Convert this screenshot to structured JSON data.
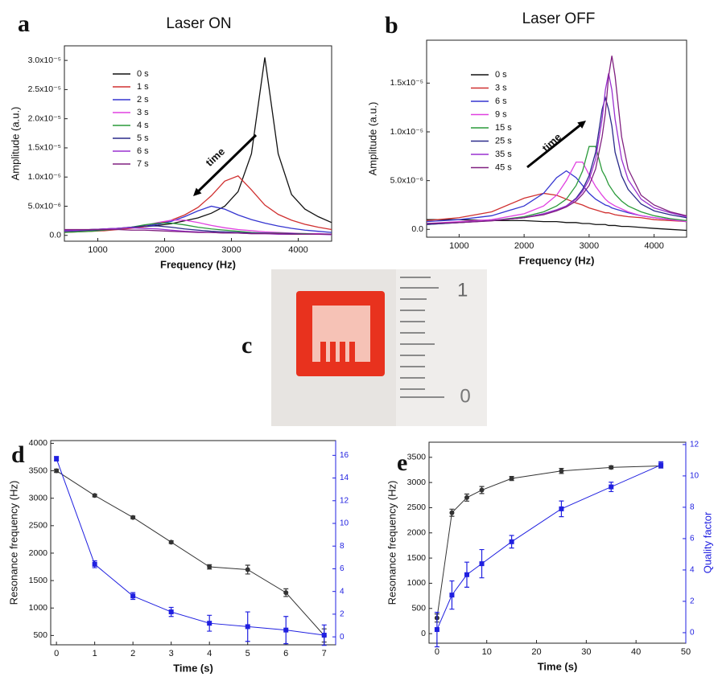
{
  "chart_data": [
    {
      "type": "line",
      "panel_label": "a",
      "title": "Laser ON",
      "x_label": "Frequency (Hz)",
      "y_label": "Amplitude (a.u.)",
      "x": [
        500,
        700,
        900,
        1100,
        1300,
        1500,
        1700,
        1900,
        2100,
        2300,
        2500,
        2700,
        2900,
        3100,
        3300,
        3500,
        3700,
        3900,
        4100,
        4300,
        4500
      ],
      "xlim": [
        500,
        4500
      ],
      "xticks": [
        1000,
        2000,
        3000,
        4000
      ],
      "ylim": [
        -1e-06,
        3.25e-05
      ],
      "yticks": [
        {
          "value": 0,
          "label": "0.0"
        },
        {
          "value": 5e-06,
          "label": "5.0x10⁻⁶"
        },
        {
          "value": 1e-05,
          "label": "1.0x10⁻⁵"
        },
        {
          "value": 1.5e-05,
          "label": "1.5x10⁻⁵"
        },
        {
          "value": 2e-05,
          "label": "2.0x10⁻⁵"
        },
        {
          "value": 2.5e-05,
          "label": "2.5x10⁻⁵"
        },
        {
          "value": 3e-05,
          "label": "3.0x10⁻⁵"
        }
      ],
      "legend": "upper left",
      "annotation": "time",
      "series": [
        {
          "name": "0 s",
          "color": "#111111",
          "values": [
            8e-07,
            9e-07,
            1e-06,
            1.1e-06,
            1.2e-06,
            1.3e-06,
            1.5e-06,
            1.7e-06,
            2e-06,
            2.5e-06,
            3e-06,
            3.8e-06,
            5e-06,
            7.5e-06,
            1.4e-05,
            3.05e-05,
            1.4e-05,
            7e-06,
            4.5e-06,
            3.2e-06,
            2.2e-06
          ]
        },
        {
          "name": "1 s",
          "color": "#d03030",
          "values": [
            5e-07,
            6e-07,
            7e-07,
            8e-07,
            1e-06,
            1.2e-06,
            1.5e-06,
            2e-06,
            2.6e-06,
            3.5e-06,
            4.8e-06,
            6.8e-06,
            9.3e-06,
            1.02e-05,
            7.8e-06,
            5.2e-06,
            3.6e-06,
            2.6e-06,
            1.9e-06,
            1.4e-06,
            1e-06
          ]
        },
        {
          "name": "2 s",
          "color": "#3535d0",
          "values": [
            8e-07,
            9e-07,
            1e-06,
            1.1e-06,
            1.2e-06,
            1.4e-06,
            1.6e-06,
            1.9e-06,
            2.4e-06,
            3.2e-06,
            4.2e-06,
            5e-06,
            4.5e-06,
            3.5e-06,
            2.7e-06,
            2.1e-06,
            1.6e-06,
            1.2e-06,
            9e-07,
            7e-07,
            5e-07
          ]
        },
        {
          "name": "3 s",
          "color": "#e040e0",
          "values": [
            7e-07,
            8e-07,
            9e-07,
            1e-06,
            1.2e-06,
            1.4e-06,
            1.7e-06,
            2.2e-06,
            2.6e-06,
            2.6e-06,
            2.2e-06,
            1.7e-06,
            1.3e-06,
            1e-06,
            8e-07,
            6e-07,
            5e-07,
            4e-07,
            3e-07,
            3e-07,
            2e-07
          ]
        },
        {
          "name": "4 s",
          "color": "#2a9a3a",
          "values": [
            5e-07,
            6e-07,
            7e-07,
            9e-07,
            1.1e-06,
            1.4e-06,
            1.8e-06,
            2.1e-06,
            2.1e-06,
            1.8e-06,
            1.4e-06,
            1.1e-06,
            9e-07,
            7e-07,
            5e-07,
            4e-07,
            4e-07,
            3e-07,
            3e-07,
            2e-07,
            2e-07
          ]
        },
        {
          "name": "5 s",
          "color": "#2a2a8a",
          "values": [
            7e-07,
            8e-07,
            9e-07,
            1e-06,
            1.2e-06,
            1.4e-06,
            1.6e-06,
            1.6e-06,
            1.4e-06,
            1.1e-06,
            9e-07,
            7e-07,
            6e-07,
            5e-07,
            4e-07,
            4e-07,
            3e-07,
            3e-07,
            2e-07,
            2e-07,
            2e-07
          ]
        },
        {
          "name": "6 s",
          "color": "#9a30d0",
          "values": [
            8e-07,
            9e-07,
            1e-06,
            1.1e-06,
            1.2e-06,
            1.3e-06,
            1.2e-06,
            1.1e-06,
            9e-07,
            7e-07,
            6e-07,
            5e-07,
            4e-07,
            4e-07,
            3e-07,
            3e-07,
            2e-07,
            2e-07,
            2e-07,
            2e-07,
            1e-07
          ]
        },
        {
          "name": "7 s",
          "color": "#802080",
          "values": [
            1e-06,
            1e-06,
            1e-06,
            1e-06,
            1e-06,
            9e-07,
            9e-07,
            8e-07,
            7e-07,
            6e-07,
            5e-07,
            5e-07,
            4e-07,
            4e-07,
            3e-07,
            3e-07,
            3e-07,
            2e-07,
            2e-07,
            2e-07,
            2e-07
          ]
        }
      ]
    },
    {
      "type": "line",
      "panel_label": "b",
      "title": "Laser OFF",
      "x_label": "Frequency (Hz)",
      "y_label": "Amplitude (a.u.)",
      "x": [
        500,
        1000,
        1500,
        2000,
        2300,
        2500,
        2650,
        2800,
        2900,
        3000,
        3100,
        3200,
        3250,
        3300,
        3350,
        3400,
        3500,
        3600,
        3800,
        4000,
        4250,
        4500
      ],
      "xlim": [
        500,
        4500
      ],
      "xticks": [
        1000,
        2000,
        3000,
        4000
      ],
      "ylim": [
        -8e-07,
        1.94e-05
      ],
      "yticks": [
        {
          "value": 0,
          "label": "0.0"
        },
        {
          "value": 5e-06,
          "label": "5.0x10⁻⁶"
        },
        {
          "value": 1e-05,
          "label": "1.0x10⁻⁵"
        },
        {
          "value": 1.5e-05,
          "label": "1.5x10⁻⁵"
        }
      ],
      "legend": "upper left",
      "annotation": "time",
      "series": [
        {
          "name": "0 s",
          "color": "#111111",
          "values": [
            1e-06,
            1e-06,
            9e-07,
            9e-07,
            8e-07,
            8e-07,
            7e-07,
            7e-07,
            6e-07,
            6e-07,
            5e-07,
            5e-07,
            5e-07,
            4e-07,
            4e-07,
            4e-07,
            3e-07,
            3e-07,
            2e-07,
            1e-07,
            0,
            -1e-07
          ]
        },
        {
          "name": "3 s",
          "color": "#d03030",
          "values": [
            9e-07,
            1.2e-06,
            1.8e-06,
            3.2e-06,
            3.7e-06,
            3.5e-06,
            3.1e-06,
            2.7e-06,
            2.5e-06,
            2.2e-06,
            2e-06,
            1.8e-06,
            1.7e-06,
            1.7e-06,
            1.6e-06,
            1.5e-06,
            1.4e-06,
            1.3e-06,
            1.2e-06,
            1e-06,
            9e-07,
            8e-07
          ]
        },
        {
          "name": "6 s",
          "color": "#3535d0",
          "values": [
            8e-07,
            1e-06,
            1.4e-06,
            2.4e-06,
            3.7e-06,
            5.3e-06,
            6e-06,
            5.3e-06,
            4.5e-06,
            3.7e-06,
            3.1e-06,
            2.7e-06,
            2.5e-06,
            2.4e-06,
            2.2e-06,
            2.1e-06,
            1.9e-06,
            1.7e-06,
            1.4e-06,
            1.2e-06,
            1e-06,
            8e-07
          ]
        },
        {
          "name": "9 s",
          "color": "#e040e0",
          "values": [
            6e-07,
            8e-07,
            1e-06,
            1.6e-06,
            2.4e-06,
            3.5e-06,
            5e-06,
            6.9e-06,
            6.9e-06,
            5.6e-06,
            4.4e-06,
            3.5e-06,
            3.1e-06,
            2.8e-06,
            2.6e-06,
            2.4e-06,
            2.1e-06,
            1.8e-06,
            1.4e-06,
            1.2e-06,
            1e-06,
            8e-07
          ]
        },
        {
          "name": "15 s",
          "color": "#2a9a3a",
          "values": [
            5e-07,
            7e-07,
            9e-07,
            1.3e-06,
            1.8e-06,
            2.4e-06,
            3.1e-06,
            4.5e-06,
            6e-06,
            8.5e-06,
            8.5e-06,
            6e-06,
            5.4e-06,
            4.6e-06,
            4.1e-06,
            3.6e-06,
            2.9e-06,
            2.4e-06,
            1.8e-06,
            1.4e-06,
            1.1e-06,
            9e-07
          ]
        },
        {
          "name": "25 s",
          "color": "#2a2a8a",
          "values": [
            5e-07,
            7e-07,
            9e-07,
            1.2e-06,
            1.6e-06,
            2e-06,
            2.4e-06,
            3.2e-06,
            4.1e-06,
            5.5e-06,
            7.9e-06,
            1.23e-05,
            1.35e-05,
            1.23e-05,
            1.06e-05,
            7.9e-06,
            5.5e-06,
            4.1e-06,
            2.6e-06,
            1.9e-06,
            1.5e-06,
            1.2e-06
          ]
        },
        {
          "name": "35 s",
          "color": "#9a30d0",
          "values": [
            6e-07,
            7e-07,
            9e-07,
            1.2e-06,
            1.6e-06,
            2e-06,
            2.4e-06,
            3.1e-06,
            3.9e-06,
            5.1e-06,
            7.2e-06,
            1.13e-05,
            1.43e-05,
            1.6e-05,
            1.43e-05,
            1.13e-05,
            7.2e-06,
            5.1e-06,
            3.1e-06,
            2.2e-06,
            1.7e-06,
            1.3e-06
          ]
        },
        {
          "name": "45 s",
          "color": "#802080",
          "values": [
            6e-07,
            7e-07,
            8.7e-07,
            1.2e-06,
            1.5e-06,
            1.9e-06,
            2.3e-06,
            2.9e-06,
            3.6e-06,
            4.5e-06,
            6.2e-06,
            9.5e-06,
            1.19e-05,
            1.57e-05,
            1.78e-05,
            1.57e-05,
            9.5e-06,
            6.2e-06,
            3.5e-06,
            2.5e-06,
            1.8e-06,
            1.4e-06
          ]
        }
      ]
    },
    {
      "type": "line",
      "panel_label": "d",
      "x_label": "Time (s)",
      "y_label": "Resonance frequency (Hz)",
      "x": [
        0,
        1,
        2,
        3,
        4,
        5,
        6,
        7
      ],
      "xlim": [
        -0.15,
        7.3
      ],
      "xticks": [
        0,
        1,
        2,
        3,
        4,
        5,
        6,
        7
      ],
      "ylim": [
        330,
        4050
      ],
      "yticks": [
        500,
        1000,
        1500,
        2000,
        2500,
        3000,
        3500,
        4000
      ],
      "y2lim": [
        -0.7,
        17.3
      ],
      "y2ticks": [
        0,
        2,
        4,
        6,
        8,
        10,
        12,
        14,
        16
      ],
      "y2_color": "#2020e0",
      "series": [
        {
          "color": "#333333",
          "marker": "circle",
          "values": [
            3500,
            3050,
            2650,
            2200,
            1750,
            1700,
            1280,
            500
          ],
          "errors": [
            30,
            25,
            25,
            25,
            40,
            80,
            70,
            120
          ]
        },
        {
          "color": "#2020e0",
          "marker": "square",
          "axis": "y2",
          "values": [
            15.7,
            6.4,
            3.6,
            2.2,
            1.2,
            0.9,
            0.6,
            0.15
          ],
          "errors": [
            0.2,
            0.3,
            0.3,
            0.4,
            0.7,
            1.3,
            1.2,
            0.9
          ]
        }
      ]
    },
    {
      "type": "line",
      "panel_label": "e",
      "x_label": "Time (s)",
      "y_label": "Resonance frequency (Hz)",
      "y2_label": "Quality factor",
      "x": [
        0,
        3,
        6,
        9,
        15,
        25,
        35,
        45
      ],
      "xlim": [
        -1.6,
        50
      ],
      "xticks": [
        0,
        10,
        20,
        30,
        40,
        50
      ],
      "ylim": [
        -190,
        3800
      ],
      "yticks": [
        0,
        500,
        1000,
        1500,
        2000,
        2500,
        3000,
        3500
      ],
      "y2lim": [
        -0.67,
        12.15
      ],
      "y2ticks": [
        0,
        2,
        4,
        6,
        8,
        10,
        12
      ],
      "y2_color": "#2020e0",
      "series": [
        {
          "color": "#333333",
          "marker": "circle",
          "values": [
            310,
            2400,
            2700,
            2850,
            3080,
            3230,
            3300,
            3330
          ],
          "errors": [
            80,
            70,
            70,
            70,
            40,
            50,
            30,
            40
          ]
        },
        {
          "color": "#2020e0",
          "marker": "square",
          "axis": "y2",
          "values": [
            0.2,
            2.4,
            3.7,
            4.4,
            5.8,
            7.9,
            9.3,
            10.7
          ],
          "errors": [
            1.1,
            0.9,
            0.8,
            0.9,
            0.4,
            0.5,
            0.3,
            0.2
          ]
        }
      ]
    }
  ],
  "panel_c": {
    "label": "c",
    "ruler_labels": [
      "1",
      "0"
    ]
  }
}
